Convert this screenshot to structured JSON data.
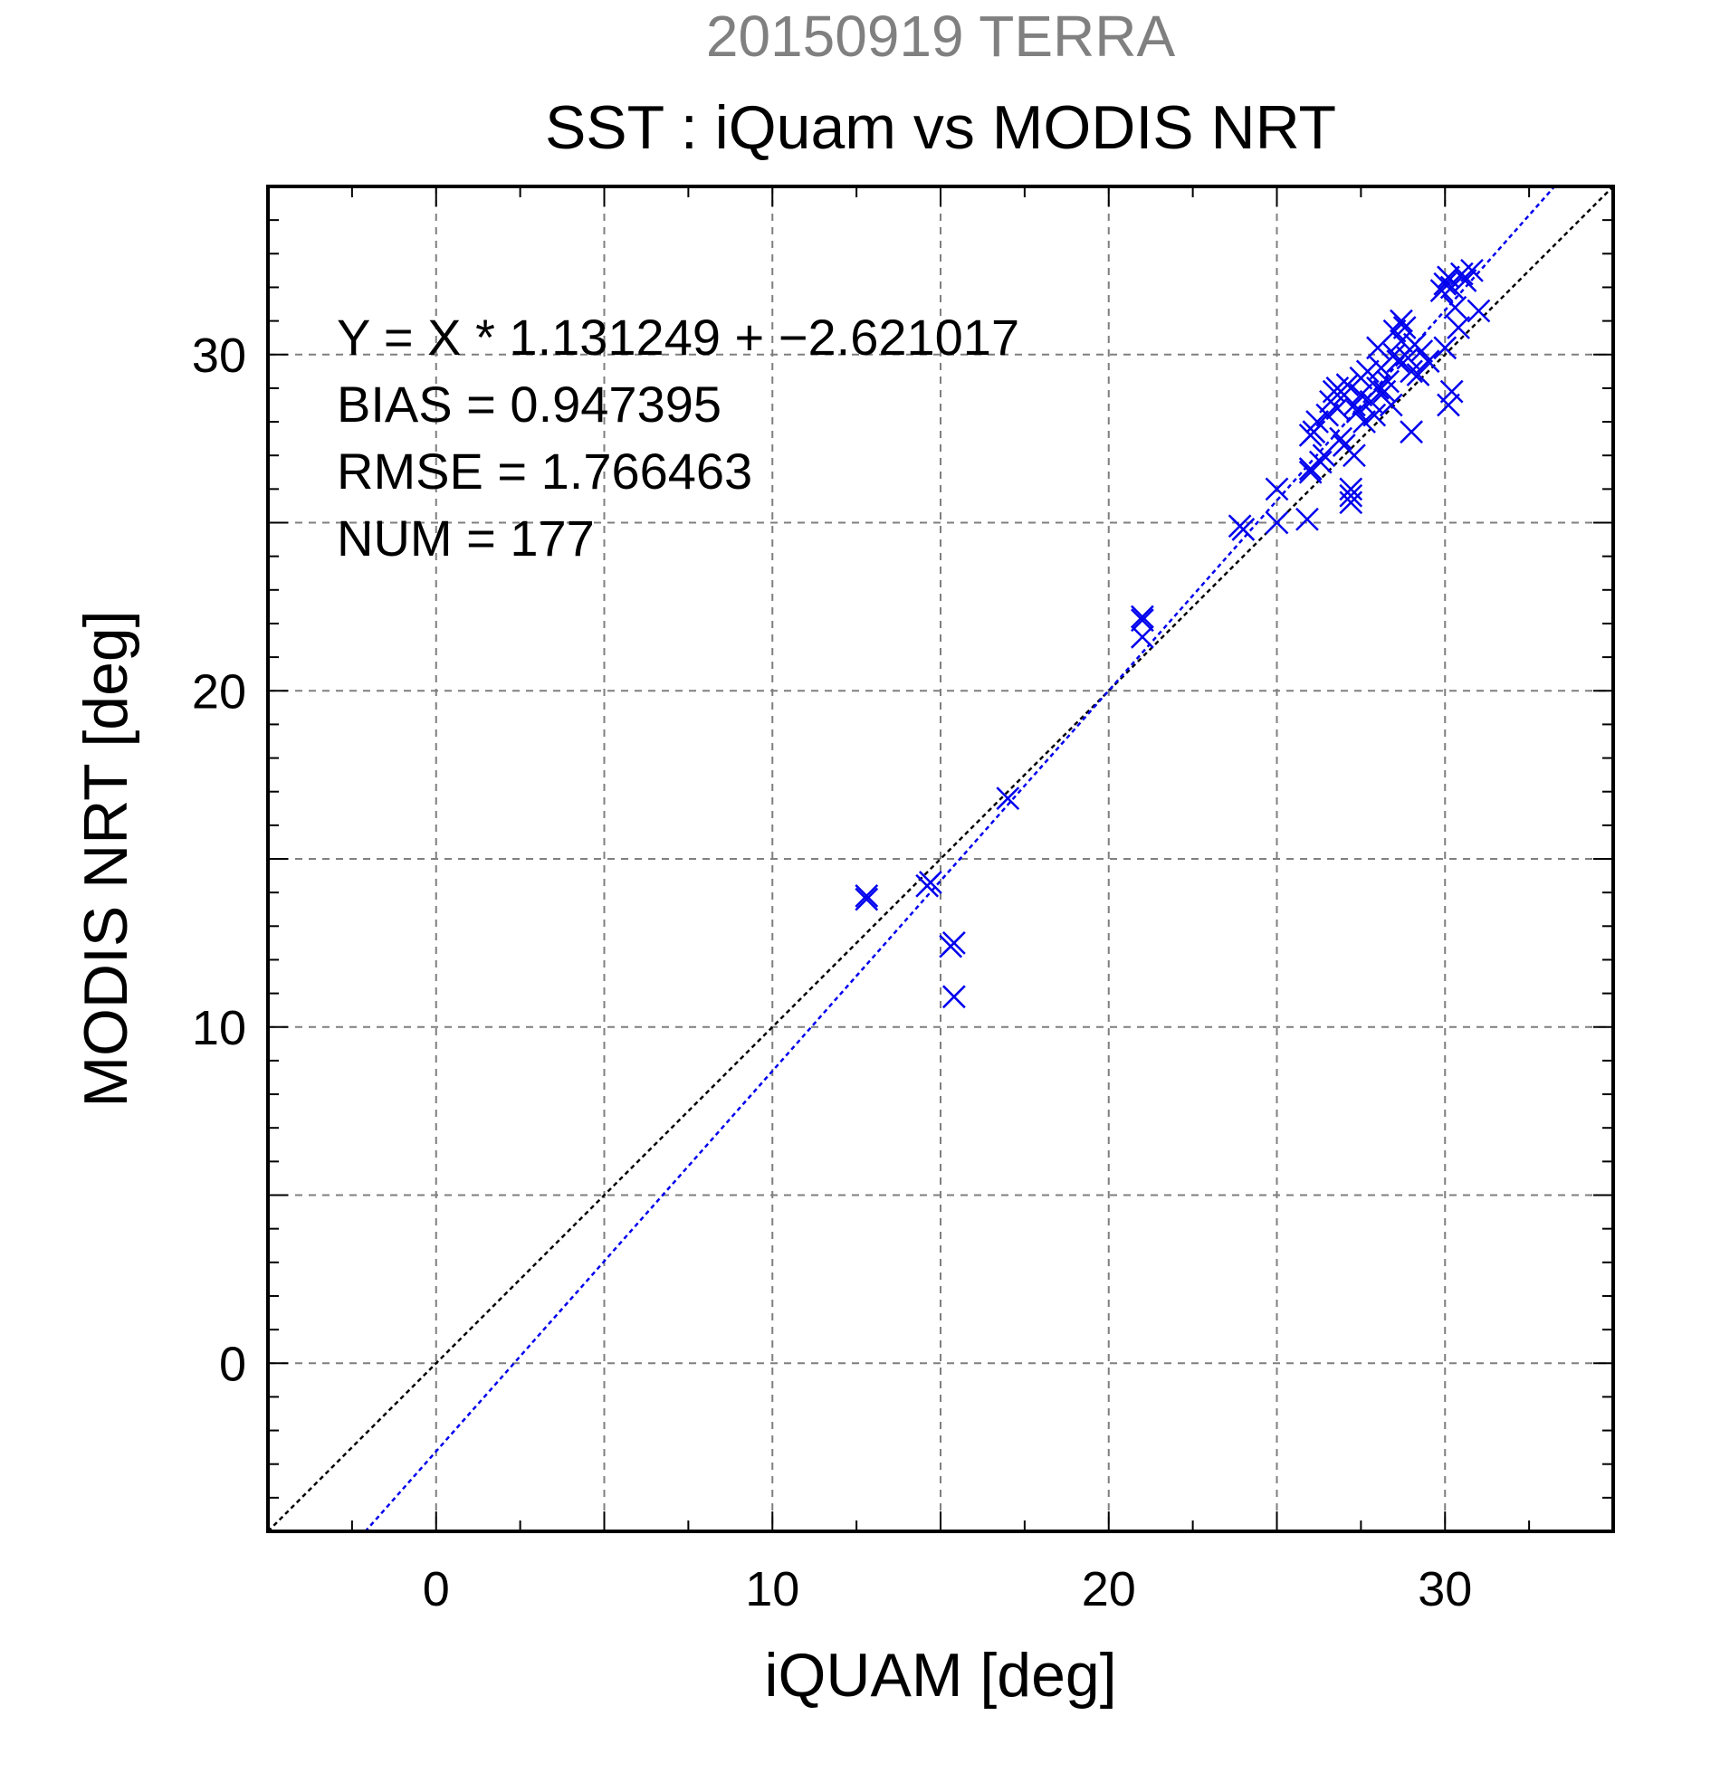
{
  "header": {
    "date_label": "20150919 TERRA",
    "title": "SST : iQuam vs MODIS NRT"
  },
  "stats": {
    "equation": "Y = X * 1.131249 + −2.621017",
    "bias": "BIAS = 0.947395",
    "rmse": "RMSE = 1.766463",
    "num": "NUM = 177"
  },
  "colors": {
    "points": "#0000ee",
    "fit_line": "#0000ee",
    "identity_line": "#000000",
    "grid": "#7f7f7f",
    "subtitle": "#808080"
  },
  "chart_data": {
    "type": "scatter",
    "title": "SST : iQuam vs MODIS NRT",
    "subtitle": "20150919 TERRA",
    "xlabel": "iQUAM [deg]",
    "ylabel": "MODIS NRT [deg]",
    "xlim": [
      -5,
      35
    ],
    "ylim": [
      -5,
      35
    ],
    "xticks": [
      0,
      10,
      20,
      30
    ],
    "yticks": [
      0,
      10,
      20,
      30
    ],
    "grid": true,
    "grid_step": 5,
    "marker": "x",
    "fit": {
      "slope": 1.131249,
      "intercept": -2.621017
    },
    "identity_line": true,
    "points": [
      [
        12.8,
        13.9
      ],
      [
        12.8,
        13.8
      ],
      [
        14.6,
        14.2
      ],
      [
        14.7,
        14.3
      ],
      [
        15.3,
        12.4
      ],
      [
        15.4,
        12.5
      ],
      [
        15.4,
        10.9
      ],
      [
        17.0,
        16.8
      ],
      [
        21.0,
        22.1
      ],
      [
        21.0,
        22.2
      ],
      [
        21.0,
        21.6
      ],
      [
        23.9,
        24.9
      ],
      [
        24.0,
        24.8
      ],
      [
        25.0,
        26.0
      ],
      [
        25.0,
        25.0
      ],
      [
        25.9,
        25.1
      ],
      [
        26.0,
        26.6
      ],
      [
        26.0,
        26.5
      ],
      [
        26.0,
        27.6
      ],
      [
        26.1,
        27.7
      ],
      [
        26.2,
        28.0
      ],
      [
        26.3,
        26.8
      ],
      [
        26.4,
        27.0
      ],
      [
        26.5,
        28.2
      ],
      [
        26.6,
        28.6
      ],
      [
        26.7,
        28.9
      ],
      [
        26.8,
        29.0
      ],
      [
        26.8,
        28.4
      ],
      [
        26.9,
        27.5
      ],
      [
        27.0,
        27.3
      ],
      [
        27.0,
        28.8
      ],
      [
        27.1,
        29.1
      ],
      [
        27.2,
        25.8
      ],
      [
        27.2,
        25.6
      ],
      [
        27.2,
        26.0
      ],
      [
        27.3,
        27.0
      ],
      [
        27.3,
        28.5
      ],
      [
        27.4,
        28.3
      ],
      [
        27.5,
        29.3
      ],
      [
        27.5,
        28.8
      ],
      [
        27.6,
        28.0
      ],
      [
        27.7,
        29.5
      ],
      [
        27.8,
        28.6
      ],
      [
        27.9,
        28.2
      ],
      [
        28.0,
        29.0
      ],
      [
        28.0,
        30.2
      ],
      [
        28.1,
        29.6
      ],
      [
        28.2,
        28.9
      ],
      [
        28.3,
        29.2
      ],
      [
        28.4,
        28.5
      ],
      [
        28.5,
        30.0
      ],
      [
        28.5,
        30.7
      ],
      [
        28.6,
        29.8
      ],
      [
        28.7,
        30.4
      ],
      [
        28.7,
        31.0
      ],
      [
        28.8,
        30.8
      ],
      [
        28.9,
        29.9
      ],
      [
        29.0,
        29.5
      ],
      [
        29.0,
        27.7
      ],
      [
        29.1,
        30.3
      ],
      [
        29.2,
        29.4
      ],
      [
        29.3,
        30.1
      ],
      [
        29.5,
        29.8
      ],
      [
        29.9,
        31.9
      ],
      [
        30.0,
        32.1
      ],
      [
        30.0,
        30.2
      ],
      [
        30.1,
        32.3
      ],
      [
        30.1,
        28.5
      ],
      [
        30.2,
        32.0
      ],
      [
        30.2,
        28.9
      ],
      [
        30.3,
        31.4
      ],
      [
        30.4,
        30.8
      ],
      [
        30.5,
        32.4
      ],
      [
        30.6,
        32.2
      ],
      [
        30.8,
        32.5
      ],
      [
        31.0,
        31.3
      ]
    ]
  }
}
